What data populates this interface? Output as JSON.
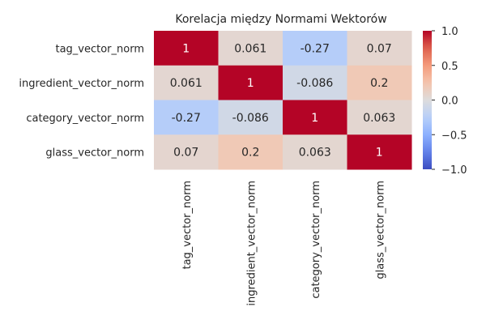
{
  "chart_data": {
    "type": "heatmap",
    "title": "Korelacja między Normami Wektorów",
    "row_labels": [
      "tag_vector_norm",
      "ingredient_vector_norm",
      "category_vector_norm",
      "glass_vector_norm"
    ],
    "col_labels": [
      "tag_vector_norm",
      "ingredient_vector_norm",
      "category_vector_norm",
      "glass_vector_norm"
    ],
    "values": [
      [
        1,
        0.061,
        -0.27,
        0.07
      ],
      [
        0.061,
        1,
        -0.086,
        0.2
      ],
      [
        -0.27,
        -0.086,
        1,
        0.063
      ],
      [
        0.07,
        0.2,
        0.063,
        1
      ]
    ],
    "value_labels": [
      [
        "1",
        "0.061",
        "-0.27",
        "0.07"
      ],
      [
        "0.061",
        "1",
        "-0.086",
        "0.2"
      ],
      [
        "-0.27",
        "-0.086",
        "1",
        "0.063"
      ],
      [
        "0.07",
        "0.2",
        "0.063",
        "1"
      ]
    ],
    "colormap": "coolwarm",
    "vmin": -1.0,
    "vmax": 1.0,
    "colorbar_ticks": [
      1.0,
      0.5,
      0.0,
      -0.5,
      -1.0
    ],
    "colorbar_tick_labels": [
      "1.0",
      "0.5",
      "0.0",
      "−0.5",
      "−1.0"
    ],
    "annotated": true
  }
}
